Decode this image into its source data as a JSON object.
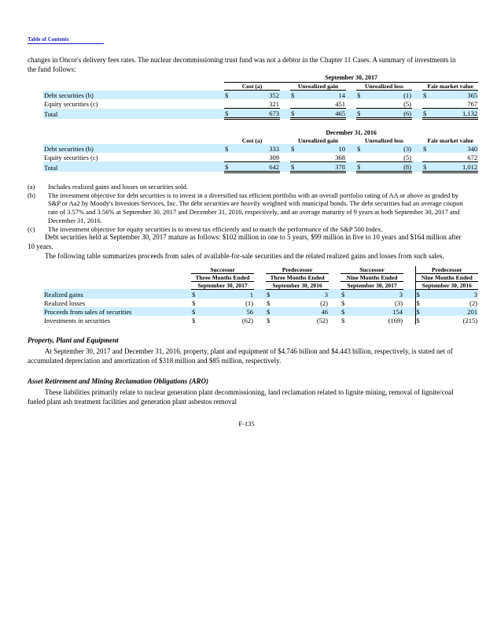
{
  "page": {
    "toc_link": "Table of Contents",
    "page_number": "F-135"
  },
  "colors": {
    "row_highlight": "#cceeff",
    "link_blue": "#1b1bbe",
    "text": "#000000"
  },
  "paragraphs": {
    "intro": "changes in Oncor's delivery fees rates. The nuclear decommissioning trust fund was not a debtor in the Chapter 11 Cases. A summary of investments in the fund follows:",
    "maturity": "Debt securities held at September 30, 2017 mature as follows: $102 million in one to 5 years, $99 million in five to 10 years and $164 million after 10 years.",
    "sales_intro": "The following table summarizes proceeds from sales of available-for-sale securities and the related realized gains and losses from such sales."
  },
  "investments_tables": [
    {
      "period": "September 30, 2017",
      "columns": [
        "Cost (a)",
        "Unrealized gain",
        "Unrealized loss",
        "Fair market value"
      ],
      "rows": [
        {
          "label": "Debt securities (b)",
          "cur": "$",
          "values": [
            "352",
            "14",
            "(1)",
            "365"
          ]
        },
        {
          "label": "Equity securities (c)",
          "cur": "",
          "values": [
            "321",
            "451",
            "(5)",
            "767"
          ]
        },
        {
          "label": "Total",
          "cur": "$",
          "values": [
            "673",
            "465",
            "(6)",
            "1,132"
          ]
        }
      ]
    },
    {
      "period": "December 31, 2016",
      "columns": [
        "Cost (a)",
        "Unrealized gain",
        "Unrealized loss",
        "Fair market value"
      ],
      "rows": [
        {
          "label": "Debt securities (b)",
          "cur": "$",
          "values": [
            "333",
            "10",
            "(3)",
            "340"
          ]
        },
        {
          "label": "Equity securities (c)",
          "cur": "",
          "values": [
            "309",
            "368",
            "(5)",
            "672"
          ]
        },
        {
          "label": "Total",
          "cur": "$",
          "values": [
            "642",
            "378",
            "(8)",
            "1,012"
          ]
        }
      ]
    }
  ],
  "footnotes": [
    {
      "marker": "(a)",
      "text": "Includes realized gains and losses on securities sold."
    },
    {
      "marker": "(b)",
      "text": "The investment objective for debt securities is to invest in a diversified tax efficient portfolio with an overall portfolio rating of AA or above as graded by S&P or Aa2 by Moody's Investors Services, Inc. The debt securities are heavily weighted with municipal bonds. The debt securities had an average coupon rate of 3.57% and 3.56% at September 30, 2017 and December 31, 2016, respectively, and an average maturity of 9 years at both September 30, 2017 and December 31, 2016."
    },
    {
      "marker": "(c)",
      "text": "The investment objective for equity securities is to invest tax efficiently and to match the performance of the S&P 500 Index."
    }
  ],
  "sales_table": {
    "currency": "$",
    "column_groups": [
      {
        "era": "Successor",
        "period": "Three Months Ended",
        "date": "September 30, 2017"
      },
      {
        "era": "Predecessor",
        "period": "Three Months Ended",
        "date": "September 30, 2016"
      },
      {
        "era": "Successor",
        "period": "Nine Months Ended",
        "date": "September 30, 2017"
      },
      {
        "era": "Predecessor",
        "period": "Nine Months Ended",
        "date": "September 30, 2016"
      }
    ],
    "rows": [
      {
        "label": "Realized gains",
        "values": [
          "1",
          "3",
          "3",
          "3"
        ]
      },
      {
        "label": "Realized losses",
        "values": [
          "(1)",
          "(2)",
          "(3)",
          "(2)"
        ]
      },
      {
        "label": "Proceeds from sales of securities",
        "values": [
          "56",
          "46",
          "154",
          "201"
        ]
      },
      {
        "label": "Investments in securities",
        "values": [
          "(62)",
          "(52)",
          "(169)",
          "(215)"
        ]
      }
    ]
  },
  "sections": [
    {
      "heading": "Property, Plant and Equipment",
      "body": "At September 30, 2017 and December 31, 2016, property, plant and equipment of $4.746 billion and $4.443 billion, respectively, is stated net of accumulated depreciation and amortization of $318 million and $85 million, respectively."
    },
    {
      "heading": "Asset Retirement and Mining Reclamation Obligations (ARO)",
      "body": "These liabilities primarily relate to nuclear generation plant decommissioning, land reclamation related to lignite mining, removal of lignite/coal fueled plant ash treatment facilities and generation plant asbestos removal"
    }
  ]
}
